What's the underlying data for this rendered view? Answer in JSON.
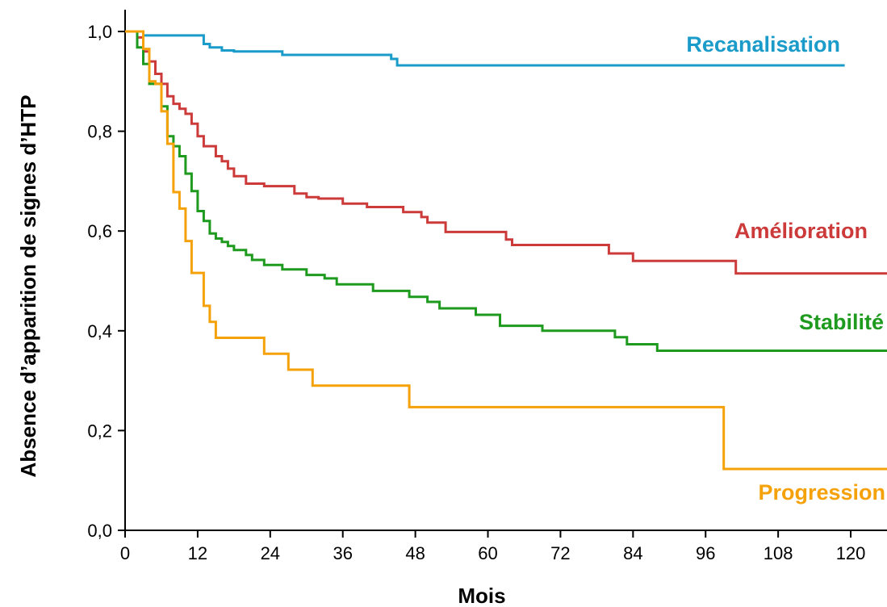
{
  "chart_data": {
    "type": "line",
    "step": true,
    "xlabel": "Mois",
    "ylabel": "Absence d’apparition de signes d’HTP",
    "xlim": [
      0,
      126
    ],
    "ylim": [
      0,
      1.02
    ],
    "xticks": [
      0,
      12,
      24,
      36,
      48,
      60,
      72,
      84,
      96,
      108,
      120
    ],
    "yticks": [
      0.0,
      0.2,
      0.4,
      0.6,
      0.8,
      1.0
    ],
    "ytick_labels": [
      "0,0",
      "0,2",
      "0,4",
      "0,6",
      "0,8",
      "1,0"
    ],
    "grid": false,
    "legend": "inline labels next to curves",
    "series": [
      {
        "name": "Recanalisation",
        "color": "#1a9bc9",
        "x": [
          0,
          3,
          13,
          14,
          16,
          18,
          26,
          44,
          45,
          119
        ],
        "y": [
          1.0,
          0.992,
          0.975,
          0.968,
          0.962,
          0.96,
          0.953,
          0.945,
          0.932,
          0.932
        ]
      },
      {
        "name": "Amélioration",
        "color": "#cc3a3a",
        "x": [
          0,
          2,
          3,
          4,
          5,
          6,
          7,
          8,
          9,
          10,
          11,
          12,
          13,
          15,
          16,
          17,
          18,
          20,
          23,
          28,
          30,
          32,
          36,
          40,
          46,
          49,
          50,
          53,
          56,
          63,
          64,
          76,
          80,
          84,
          101,
          126
        ],
        "y": [
          1.0,
          0.988,
          0.96,
          0.94,
          0.915,
          0.895,
          0.87,
          0.855,
          0.845,
          0.835,
          0.815,
          0.79,
          0.77,
          0.75,
          0.74,
          0.725,
          0.71,
          0.695,
          0.69,
          0.675,
          0.668,
          0.665,
          0.655,
          0.648,
          0.638,
          0.628,
          0.617,
          0.598,
          0.598,
          0.583,
          0.572,
          0.572,
          0.555,
          0.54,
          0.515,
          0.515
        ]
      },
      {
        "name": "Stabilité",
        "color": "#1e9a1e",
        "x": [
          0,
          2,
          3,
          4,
          6,
          7,
          8,
          9,
          10,
          11,
          12,
          13,
          14,
          15,
          16,
          17,
          18,
          20,
          21,
          23,
          26,
          30,
          33,
          35,
          41,
          47,
          50,
          52,
          58,
          62,
          69,
          80,
          81,
          83,
          88,
          126
        ],
        "y": [
          1.0,
          0.968,
          0.935,
          0.895,
          0.85,
          0.79,
          0.77,
          0.75,
          0.715,
          0.68,
          0.64,
          0.62,
          0.595,
          0.585,
          0.578,
          0.57,
          0.562,
          0.552,
          0.542,
          0.532,
          0.523,
          0.512,
          0.505,
          0.493,
          0.48,
          0.468,
          0.458,
          0.445,
          0.432,
          0.41,
          0.4,
          0.4,
          0.387,
          0.373,
          0.36,
          0.36
        ]
      },
      {
        "name": "Progression",
        "color": "#f5a10a",
        "x": [
          0,
          3,
          4,
          5,
          6,
          7,
          8,
          9,
          10,
          11,
          13,
          14,
          15,
          23,
          27,
          31,
          47,
          99,
          126
        ],
        "y": [
          1.0,
          0.965,
          0.9,
          0.895,
          0.84,
          0.775,
          0.678,
          0.645,
          0.58,
          0.516,
          0.45,
          0.418,
          0.386,
          0.354,
          0.322,
          0.29,
          0.247,
          0.123,
          0.123
        ]
      }
    ]
  }
}
